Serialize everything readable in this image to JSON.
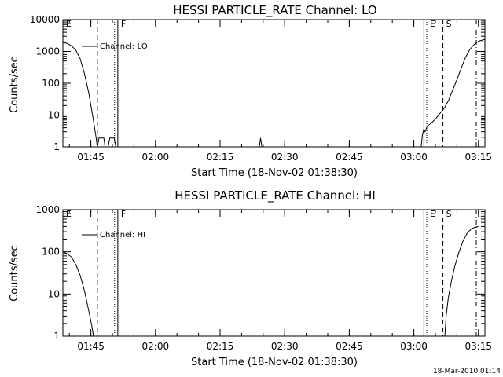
{
  "chart_data": [
    {
      "type": "line",
      "title": "HESSI PARTICLE_RATE Channel: LO",
      "xlabel": "Start Time (18-Nov-02 01:38:30)",
      "ylabel": "Counts/sec",
      "yscale": "log",
      "ylim": [
        1,
        10000
      ],
      "xlim_minutes": [
        98.5,
        196.5
      ],
      "x_ticks": [
        "01:45",
        "02:00",
        "02:15",
        "02:30",
        "02:45",
        "03:00",
        "03:15"
      ],
      "y_ticks": [
        "1",
        "10",
        "100",
        "1000",
        "10000"
      ],
      "legend": {
        "label": "Channel: LO",
        "placement": "top-left"
      },
      "markers": [
        {
          "label": "E",
          "time": "01:38:30",
          "style": "solid"
        },
        {
          "label": "",
          "time": "01:46:30",
          "style": "dashed"
        },
        {
          "label": "",
          "time": "01:50:30",
          "style": "dotted"
        },
        {
          "label": "F",
          "time": "01:51:15",
          "style": "solid"
        },
        {
          "label": "",
          "time": "03:02:20",
          "style": "solid"
        },
        {
          "label": "E",
          "time": "03:03:00",
          "style": "dotted"
        },
        {
          "label": "S",
          "time": "03:06:45",
          "style": "dashed"
        },
        {
          "label": "",
          "time": "03:14:30",
          "style": "dashdot"
        }
      ],
      "series": [
        {
          "name": "Channel: LO",
          "segments": [
            [
              [
                98.5,
                1900
              ],
              [
                99.5,
                1800
              ],
              [
                100.5,
                1500
              ],
              [
                101.5,
                1100
              ],
              [
                102.5,
                600
              ],
              [
                103.5,
                200
              ],
              [
                104.5,
                50
              ],
              [
                105.5,
                8
              ],
              [
                106.2,
                2
              ],
              [
                106.5,
                1
              ]
            ],
            [
              [
                106.5,
                1
              ],
              [
                106.9,
                1.9
              ],
              [
                108.0,
                1.9
              ],
              [
                108.3,
                1.0
              ],
              [
                109.0,
                1.0
              ],
              [
                109.4,
                1.9
              ],
              [
                110.4,
                1.9
              ],
              [
                110.8,
                1
              ]
            ],
            [
              [
                144.1,
                1
              ],
              [
                144.4,
                1.9
              ],
              [
                144.7,
                1
              ]
            ],
            [
              [
                181.7,
                1
              ],
              [
                182.0,
                2.5
              ],
              [
                182.3,
                3.5
              ],
              [
                182.6,
                3.0
              ],
              [
                182.8,
                3.5
              ],
              [
                183.1,
                4.5
              ],
              [
                184.0,
                5.5
              ],
              [
                185.0,
                7.5
              ],
              [
                186.0,
                11
              ],
              [
                187.0,
                16
              ],
              [
                188.0,
                28
              ],
              [
                189.0,
                60
              ],
              [
                190.0,
                130
              ],
              [
                191.0,
                300
              ],
              [
                192.0,
                650
              ],
              [
                193.0,
                1150
              ],
              [
                194.0,
                1650
              ],
              [
                195.0,
                2100
              ],
              [
                196.5,
                2400
              ]
            ]
          ]
        }
      ]
    },
    {
      "type": "line",
      "title": "HESSI PARTICLE_RATE Channel: HI",
      "xlabel": "Start Time (18-Nov-02 01:38:30)",
      "ylabel": "Counts/sec",
      "yscale": "log",
      "ylim": [
        1,
        1000
      ],
      "xlim_minutes": [
        98.5,
        196.5
      ],
      "x_ticks": [
        "01:45",
        "02:00",
        "02:15",
        "02:30",
        "02:45",
        "03:00",
        "03:15"
      ],
      "y_ticks": [
        "1",
        "10",
        "100",
        "1000"
      ],
      "legend": {
        "label": "Channel: HI",
        "placement": "top-left"
      },
      "markers": [
        {
          "label": "E",
          "time": "01:38:30",
          "style": "solid"
        },
        {
          "label": "",
          "time": "01:46:30",
          "style": "dashed"
        },
        {
          "label": "",
          "time": "01:50:30",
          "style": "dotted"
        },
        {
          "label": "F",
          "time": "01:51:15",
          "style": "solid"
        },
        {
          "label": "",
          "time": "03:02:20",
          "style": "solid"
        },
        {
          "label": "E",
          "time": "03:03:00",
          "style": "dotted"
        },
        {
          "label": "S",
          "time": "03:06:45",
          "style": "dashed"
        },
        {
          "label": "",
          "time": "03:14:30",
          "style": "dashdot"
        }
      ],
      "series": [
        {
          "name": "Channel: HI",
          "segments": [
            [
              [
                98.5,
                100
              ],
              [
                99.5,
                90
              ],
              [
                100.5,
                75
              ],
              [
                101.5,
                50
              ],
              [
                102.5,
                28
              ],
              [
                103.5,
                12
              ],
              [
                104.5,
                4
              ],
              [
                105.2,
                1.8
              ],
              [
                105.6,
                1
              ]
            ],
            [
              [
                187.2,
                1
              ],
              [
                187.5,
                3
              ],
              [
                188.0,
                8
              ],
              [
                188.7,
                20
              ],
              [
                189.5,
                45
              ],
              [
                190.5,
                100
              ],
              [
                191.5,
                190
              ],
              [
                192.5,
                290
              ],
              [
                193.5,
                360
              ],
              [
                194.5,
                390
              ],
              [
                195.0,
                395
              ]
            ]
          ]
        }
      ]
    }
  ],
  "footer": {
    "timestamp": "18-Mar-2010 01:14"
  }
}
